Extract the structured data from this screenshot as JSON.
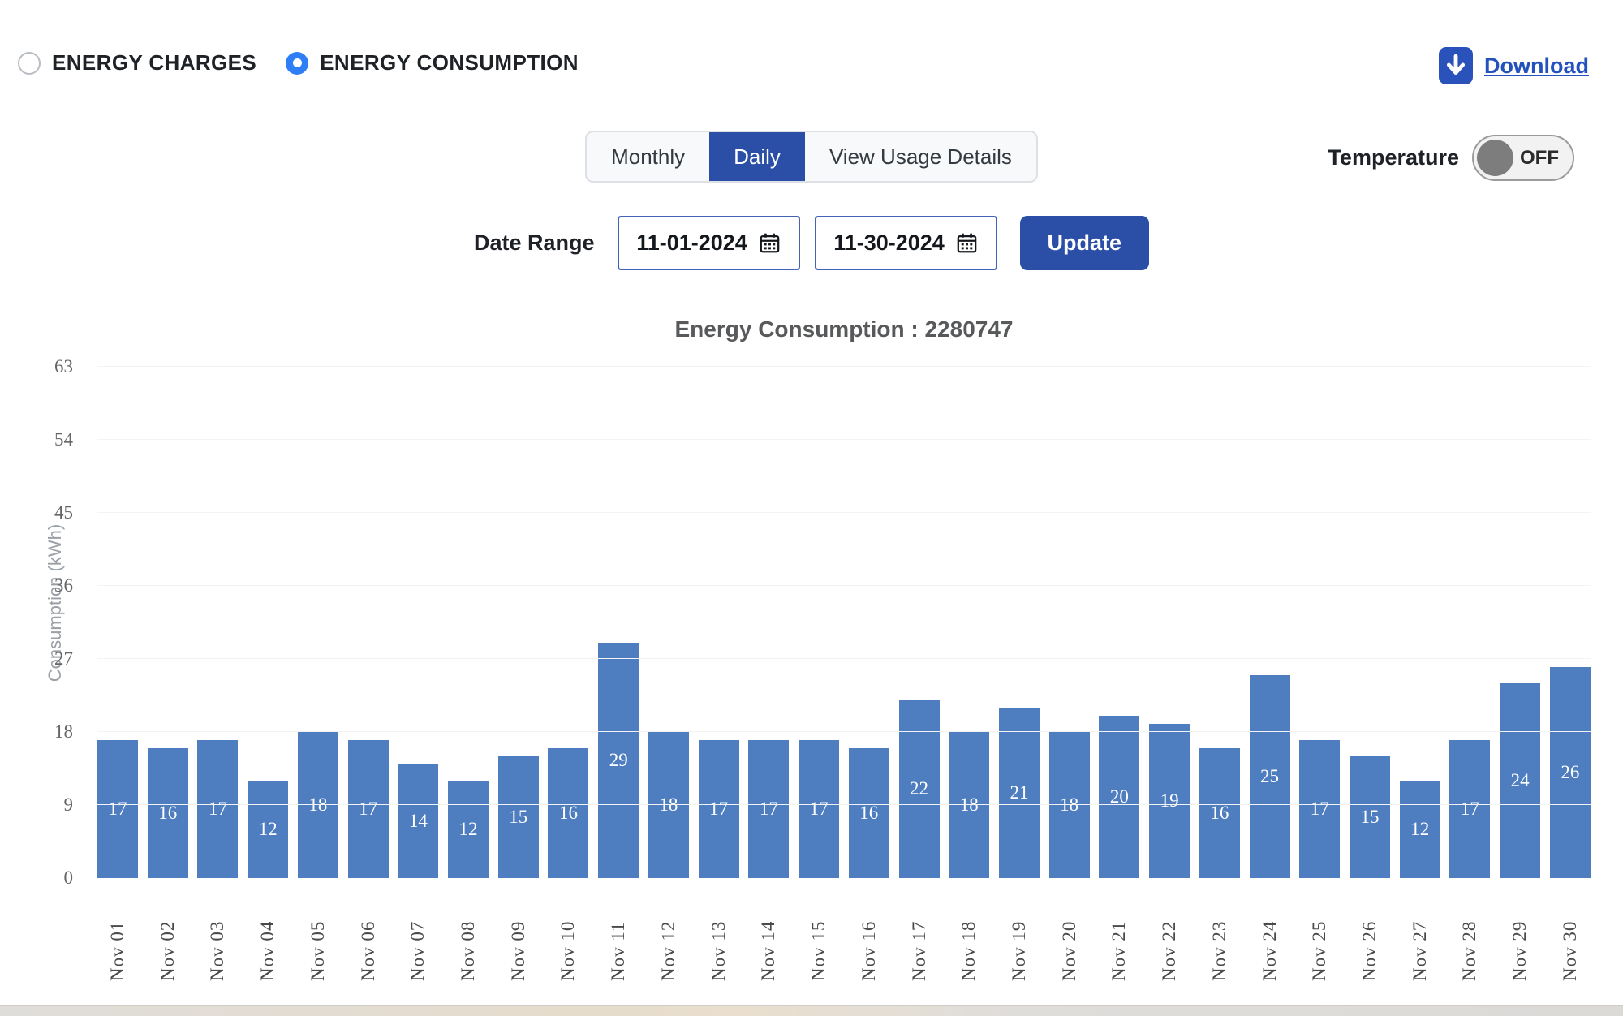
{
  "header": {
    "radios": [
      {
        "label": "ENERGY CHARGES",
        "selected": false
      },
      {
        "label": "ENERGY CONSUMPTION",
        "selected": true
      }
    ],
    "download_label": "Download"
  },
  "tabs": [
    {
      "label": "Monthly",
      "active": false
    },
    {
      "label": "Daily",
      "active": true
    },
    {
      "label": "View Usage Details",
      "active": false
    }
  ],
  "temperature": {
    "label": "Temperature",
    "state": "OFF"
  },
  "date_range": {
    "label": "Date Range",
    "start_value": "11-01-2024",
    "end_value": "11-30-2024",
    "update_label": "Update"
  },
  "chart_data": {
    "type": "bar",
    "title": "Energy Consumption : 2280747",
    "ylabel": "Consumption (kWh)",
    "ylim": [
      0,
      63
    ],
    "yticks": [
      0,
      9,
      18,
      27,
      36,
      45,
      54,
      63
    ],
    "grid": true,
    "legend": "none",
    "bar_color": "#4e7dc0",
    "categories": [
      "Nov 01",
      "Nov 02",
      "Nov 03",
      "Nov 04",
      "Nov 05",
      "Nov 06",
      "Nov 07",
      "Nov 08",
      "Nov 09",
      "Nov 10",
      "Nov 11",
      "Nov 12",
      "Nov 13",
      "Nov 14",
      "Nov 15",
      "Nov 16",
      "Nov 17",
      "Nov 18",
      "Nov 19",
      "Nov 20",
      "Nov 21",
      "Nov 22",
      "Nov 23",
      "Nov 24",
      "Nov 25",
      "Nov 26",
      "Nov 27",
      "Nov 28",
      "Nov 29",
      "Nov 30"
    ],
    "values": [
      17,
      16,
      17,
      12,
      18,
      17,
      14,
      12,
      15,
      16,
      29,
      18,
      17,
      17,
      17,
      16,
      22,
      18,
      21,
      18,
      20,
      19,
      16,
      25,
      17,
      15,
      12,
      17,
      24,
      26
    ]
  },
  "colors": {
    "accent_blue": "#2b4fa6",
    "link_blue": "#2351bd",
    "radio_blue": "#2d7ef7",
    "bar_blue": "#4e7dc0"
  }
}
